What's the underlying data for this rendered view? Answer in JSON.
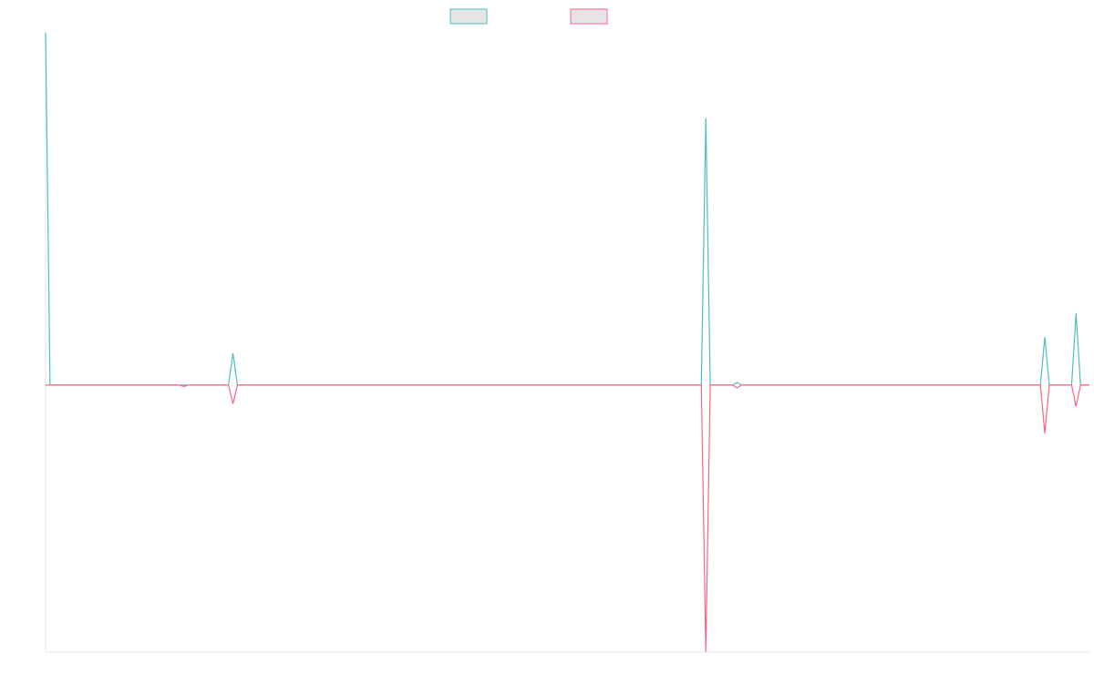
{
  "chart_data": {
    "type": "line",
    "title": "",
    "xlabel": "",
    "ylabel": "",
    "x": [
      0,
      1,
      2,
      3,
      4,
      5,
      6,
      7,
      8,
      9,
      10,
      11,
      12,
      13,
      14,
      15,
      16,
      17,
      18,
      19,
      20,
      21,
      22,
      23,
      24,
      25,
      26,
      27,
      28,
      29,
      30,
      31,
      32,
      33,
      34,
      35,
      36,
      37,
      38,
      39,
      40,
      41,
      42,
      43,
      44,
      45,
      46,
      47,
      48,
      49,
      50,
      51,
      52,
      53,
      54,
      55,
      56,
      57,
      58,
      59,
      60,
      61,
      62,
      63,
      64,
      65,
      66,
      67,
      68,
      69,
      70,
      71,
      72,
      73,
      74,
      75,
      76,
      77,
      78,
      79,
      80,
      81,
      82,
      83,
      84,
      85,
      86,
      87,
      88,
      89,
      90,
      91,
      92,
      93,
      94,
      95,
      96,
      97,
      98,
      99,
      100,
      101,
      102,
      103,
      104,
      105,
      106,
      107,
      108,
      109,
      110,
      111,
      112,
      113,
      114,
      115,
      116,
      117,
      118,
      119,
      120,
      121,
      122,
      123,
      124,
      125,
      126,
      127,
      128,
      129,
      130,
      131,
      132,
      133,
      134,
      135,
      136,
      137,
      138,
      139,
      140,
      141,
      142,
      143,
      144,
      145,
      146,
      147,
      148,
      149,
      150,
      151,
      152,
      153,
      154,
      155,
      156,
      157,
      158,
      159,
      160,
      161,
      162,
      163,
      164,
      165,
      166,
      167,
      168,
      169,
      170,
      171,
      172,
      173,
      174,
      175,
      176,
      177,
      178,
      179,
      180,
      181,
      182,
      183,
      184,
      185,
      186,
      187,
      188,
      189,
      190,
      191,
      192,
      193,
      194,
      195,
      196,
      197,
      198,
      199,
      200,
      201,
      202,
      203,
      204,
      205,
      206,
      207,
      208,
      209,
      210,
      211,
      212,
      213,
      214,
      215,
      216,
      217,
      218,
      219,
      220,
      221,
      222,
      223,
      224,
      225,
      226,
      227,
      228,
      229,
      230,
      231,
      232,
      233,
      234
    ],
    "xlim": [
      0,
      234
    ],
    "ylim": [
      -1.0,
      1.32
    ],
    "grid": false,
    "legend": "top-center",
    "series": [
      {
        "name": "",
        "color": "#4bc0c0",
        "points": [
          [
            0,
            1.32
          ],
          [
            1,
            0
          ],
          [
            41,
            0
          ],
          [
            42,
            0.12
          ],
          [
            43,
            0
          ],
          [
            147,
            0
          ],
          [
            148,
            1.0
          ],
          [
            149,
            0
          ],
          [
            154,
            0
          ],
          [
            155,
            0.01
          ],
          [
            156,
            0
          ],
          [
            223,
            0
          ],
          [
            224,
            0.18
          ],
          [
            225,
            0
          ],
          [
            230,
            0
          ],
          [
            231,
            0.27
          ],
          [
            232,
            0
          ],
          [
            234,
            0
          ]
        ]
      },
      {
        "name": "",
        "color": "#ff6384",
        "points": [
          [
            0,
            0
          ],
          [
            30,
            0
          ],
          [
            31,
            -0.005
          ],
          [
            32,
            0
          ],
          [
            41,
            0
          ],
          [
            42,
            -0.07
          ],
          [
            43,
            0
          ],
          [
            147,
            0
          ],
          [
            148,
            -1.0
          ],
          [
            149,
            0
          ],
          [
            154,
            0
          ],
          [
            155,
            -0.01
          ],
          [
            156,
            0
          ],
          [
            223,
            0
          ],
          [
            224,
            -0.18
          ],
          [
            225,
            0
          ],
          [
            230,
            0
          ],
          [
            231,
            -0.08
          ],
          [
            232,
            0
          ],
          [
            234,
            0
          ]
        ]
      }
    ]
  }
}
